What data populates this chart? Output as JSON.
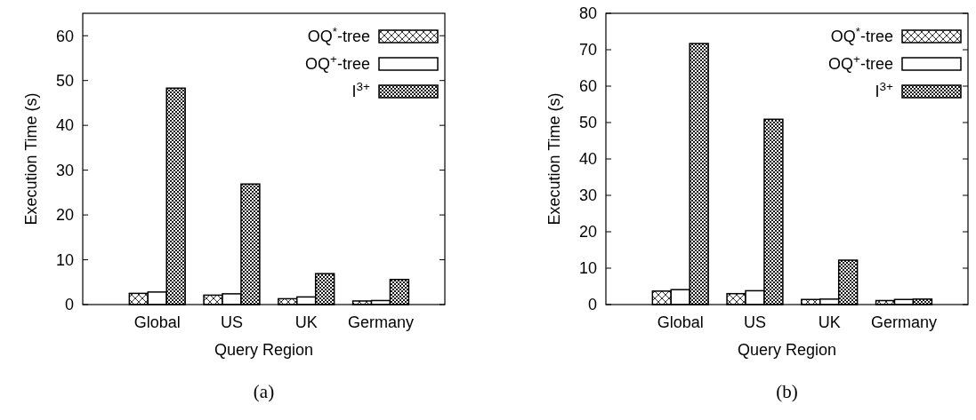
{
  "chart_data": [
    {
      "type": "bar",
      "title": "(a)",
      "xlabel": "Query Region",
      "ylabel": "Execution Time (s)",
      "categories": [
        "Global",
        "US",
        "UK",
        "Germany"
      ],
      "ylim": [
        0,
        65
      ],
      "yticks": [
        0,
        10,
        20,
        30,
        40,
        50,
        60
      ],
      "legend": "top right",
      "series": [
        {
          "name": "OQ$^{*}$-tree",
          "color": "#000000",
          "values": [
            2.5,
            2.1,
            1.3,
            0.8
          ]
        },
        {
          "name": "OQ$^{+}$-tree",
          "color": "#000000",
          "values": [
            2.8,
            2.4,
            1.7,
            0.9
          ]
        },
        {
          "name": "I$^{3+}$",
          "color": "#000000",
          "values": [
            48.3,
            26.9,
            6.9,
            5.6
          ]
        }
      ]
    },
    {
      "type": "bar",
      "title": "(b)",
      "xlabel": "Query Region",
      "ylabel": "Execution Time (s)",
      "categories": [
        "Global",
        "US",
        "UK",
        "Germany"
      ],
      "ylim": [
        0,
        80
      ],
      "yticks": [
        0,
        10,
        20,
        30,
        40,
        50,
        60,
        70,
        80
      ],
      "legend": "top right",
      "series": [
        {
          "name": "OQ$^{*}$-tree",
          "color": "#000000",
          "values": [
            3.7,
            3.0,
            1.4,
            1.1
          ]
        },
        {
          "name": "OQ$^{+}$-tree",
          "color": "#000000",
          "values": [
            4.1,
            3.8,
            1.5,
            1.4
          ]
        },
        {
          "name": "I$^{3+}$",
          "color": "#000000",
          "values": [
            71.7,
            50.9,
            12.2,
            1.5
          ]
        }
      ]
    }
  ]
}
